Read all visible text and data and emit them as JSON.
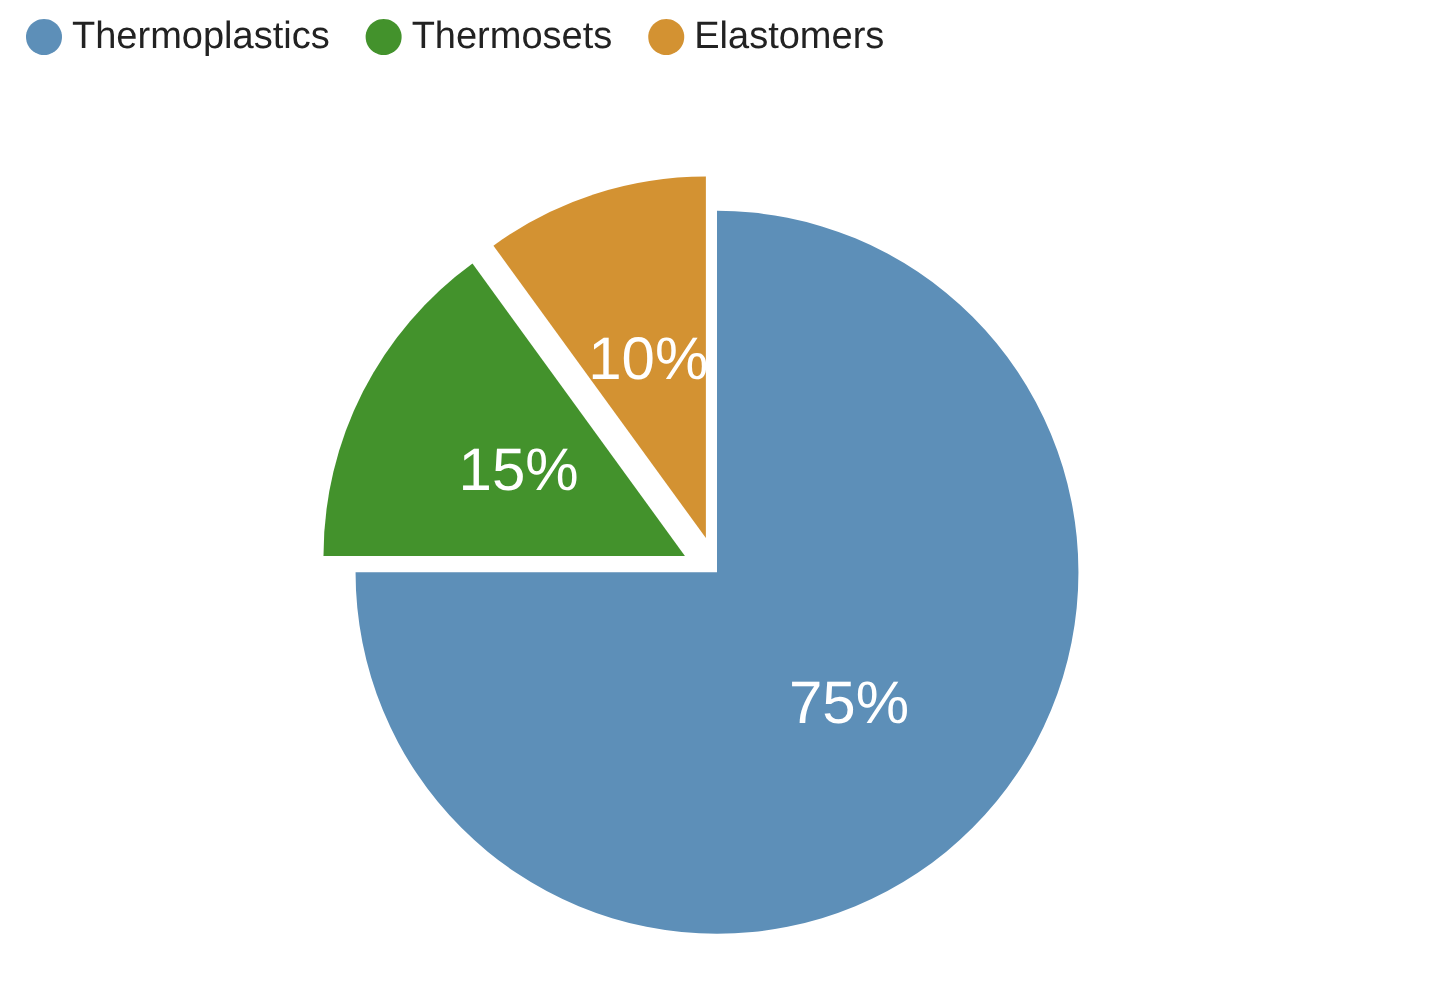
{
  "chart_data": {
    "type": "pie",
    "categories": [
      "Thermoplastics",
      "Thermosets",
      "Elastomers"
    ],
    "values": [
      75,
      15,
      10
    ],
    "colors": [
      "#5d8fb8",
      "#43922c",
      "#d39232"
    ],
    "value_labels": [
      "75%",
      "15%",
      "10%"
    ],
    "legend": "top left"
  }
}
